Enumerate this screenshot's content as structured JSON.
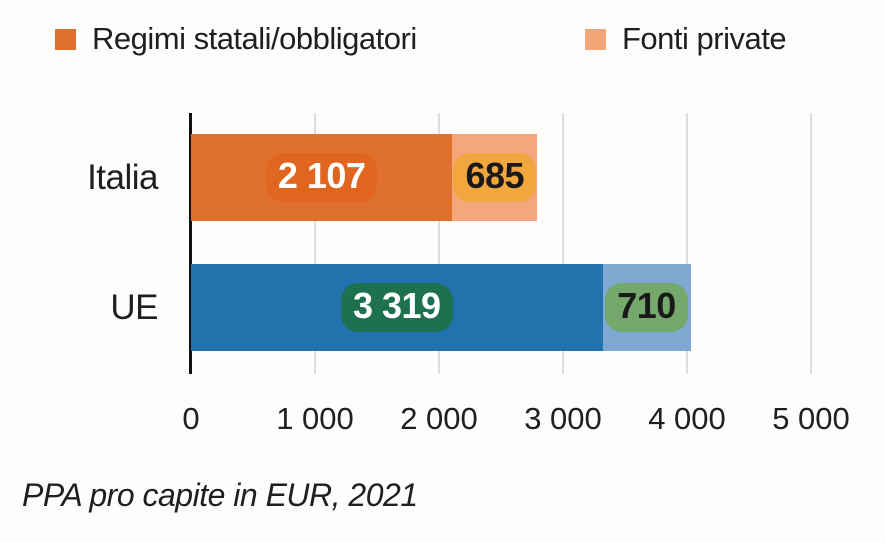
{
  "chart_data": {
    "type": "bar",
    "orientation": "horizontal",
    "stacked": true,
    "caption": "PPA pro capite in EUR, 2021",
    "categories": [
      "Italia",
      "UE"
    ],
    "series": [
      {
        "name": "Regimi statali/obbligatori",
        "values": [
          2107,
          3319
        ],
        "labels": [
          "2 107",
          "3 319"
        ],
        "bar_colors": [
          "#e0712c",
          "#2272ae"
        ],
        "badge_colors": [
          "#e0661f",
          "#1e7150"
        ],
        "badge_text_colors": [
          "#ffffff",
          "#ffffff"
        ]
      },
      {
        "name": "Fonti private",
        "values": [
          685,
          710
        ],
        "labels": [
          "685",
          "710"
        ],
        "bar_colors": [
          "#f3a77a",
          "#7fa9d0"
        ],
        "badge_colors": [
          "#f1a73e",
          "#74a96b"
        ],
        "badge_text_colors": [
          "#1a1a1a",
          "#1a1a1a"
        ]
      }
    ],
    "x_ticks": [
      {
        "value": 0,
        "label": "0"
      },
      {
        "value": 1000,
        "label": "1 000"
      },
      {
        "value": 2000,
        "label": "2 000"
      },
      {
        "value": 3000,
        "label": "3 000"
      },
      {
        "value": 4000,
        "label": "4 000"
      },
      {
        "value": 5000,
        "label": "5 000"
      }
    ],
    "xlim": [
      0,
      5000
    ],
    "grid": "vertical",
    "legend_position": "top"
  },
  "legend": {
    "items": [
      {
        "label": "Regimi statali/obbligatori",
        "color": "#e0712c"
      },
      {
        "label": "Fonti private",
        "color": "#f2a678"
      }
    ]
  },
  "colors": {
    "background": "#fdfdfb",
    "axis": "#111111",
    "gridline": "#dddddb",
    "text": "#1f1f1f"
  }
}
